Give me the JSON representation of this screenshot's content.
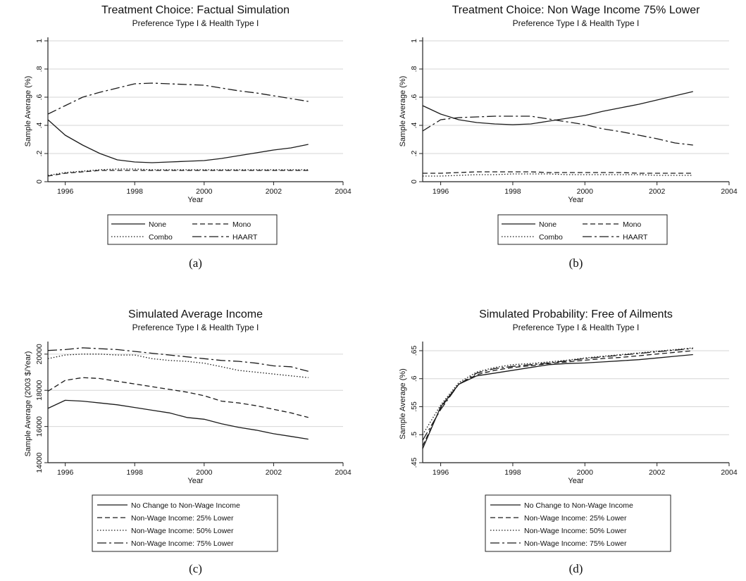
{
  "chart_data": [
    {
      "type": "line",
      "title": "Treatment Choice: Factual Simulation",
      "subtitle": "Preference Type I & Health Type I",
      "xlabel": "Year",
      "ylabel": "Sample Average (%)",
      "xlim": [
        1995.5,
        2004
      ],
      "ylim": [
        0,
        1
      ],
      "xticks": [
        "1996",
        "1998",
        "2000",
        "2002",
        "2004"
      ],
      "yticks": [
        "0",
        ".2",
        ".4",
        ".6",
        ".8",
        "1"
      ],
      "grid": true,
      "legend_columns": 2,
      "caption": "(a)",
      "x": [
        1995.5,
        1996,
        1996.5,
        1997,
        1997.5,
        1998,
        1998.5,
        1999,
        1999.5,
        2000,
        2000.5,
        2001,
        2001.5,
        2002,
        2002.5,
        2003
      ],
      "series": [
        {
          "name": "None",
          "style": "solid",
          "values": [
            0.44,
            0.33,
            0.26,
            0.2,
            0.155,
            0.14,
            0.135,
            0.14,
            0.145,
            0.15,
            0.165,
            0.185,
            0.205,
            0.225,
            0.24,
            0.265
          ]
        },
        {
          "name": "Mono",
          "style": "dash",
          "values": [
            0.04,
            0.06,
            0.07,
            0.08,
            0.08,
            0.08,
            0.08,
            0.08,
            0.08,
            0.08,
            0.08,
            0.08,
            0.08,
            0.08,
            0.08,
            0.08
          ]
        },
        {
          "name": "Combo",
          "style": "dot",
          "values": [
            0.045,
            0.065,
            0.075,
            0.085,
            0.09,
            0.09,
            0.085,
            0.085,
            0.085,
            0.085,
            0.085,
            0.085,
            0.085,
            0.085,
            0.085,
            0.085
          ]
        },
        {
          "name": "HAART",
          "style": "dashdot",
          "values": [
            0.48,
            0.54,
            0.6,
            0.635,
            0.665,
            0.695,
            0.7,
            0.695,
            0.69,
            0.685,
            0.665,
            0.645,
            0.63,
            0.61,
            0.59,
            0.57
          ]
        }
      ]
    },
    {
      "type": "line",
      "title": "Treatment Choice: Non Wage Income 75% Lower",
      "subtitle": "Preference Type I & Health Type I",
      "xlabel": "Year",
      "ylabel": "Sample Average (%)",
      "xlim": [
        1995.5,
        2004
      ],
      "ylim": [
        0,
        1
      ],
      "xticks": [
        "1996",
        "1998",
        "2000",
        "2002",
        "2004"
      ],
      "yticks": [
        "0",
        ".2",
        ".4",
        ".6",
        ".8",
        "1"
      ],
      "grid": true,
      "legend_columns": 2,
      "caption": "(b)",
      "x": [
        1995.5,
        1996,
        1996.5,
        1997,
        1997.5,
        1998,
        1998.5,
        1999,
        1999.5,
        2000,
        2000.5,
        2001,
        2001.5,
        2002,
        2002.5,
        2003
      ],
      "series": [
        {
          "name": "None",
          "style": "solid",
          "values": [
            0.54,
            0.48,
            0.44,
            0.42,
            0.41,
            0.405,
            0.41,
            0.43,
            0.45,
            0.47,
            0.5,
            0.525,
            0.55,
            0.58,
            0.61,
            0.64
          ]
        },
        {
          "name": "Mono",
          "style": "dash",
          "values": [
            0.06,
            0.06,
            0.065,
            0.07,
            0.07,
            0.07,
            0.07,
            0.065,
            0.065,
            0.065,
            0.065,
            0.065,
            0.06,
            0.06,
            0.06,
            0.06
          ]
        },
        {
          "name": "Combo",
          "style": "dot",
          "values": [
            0.04,
            0.04,
            0.045,
            0.05,
            0.05,
            0.055,
            0.055,
            0.055,
            0.05,
            0.05,
            0.05,
            0.05,
            0.05,
            0.045,
            0.045,
            0.045
          ]
        },
        {
          "name": "HAART",
          "style": "dashdot",
          "values": [
            0.36,
            0.44,
            0.455,
            0.46,
            0.465,
            0.465,
            0.465,
            0.445,
            0.425,
            0.405,
            0.375,
            0.355,
            0.33,
            0.305,
            0.275,
            0.26
          ]
        }
      ]
    },
    {
      "type": "line",
      "title": "Simulated Average Income",
      "subtitle": "Preference Type I & Health Type I",
      "xlabel": "Year",
      "ylabel": "Sample Average (2003 $/Year)",
      "xlim": [
        1995.5,
        2004
      ],
      "ylim": [
        14000,
        20500
      ],
      "ytick_values": [
        14000,
        16000,
        18000,
        20000
      ],
      "xticks": [
        "1996",
        "1998",
        "2000",
        "2002",
        "2004"
      ],
      "yticks": [
        "14000",
        "16000",
        "18000",
        "20000"
      ],
      "grid": true,
      "legend_columns": 1,
      "caption": "(c)",
      "x": [
        1995.5,
        1996,
        1996.5,
        1997,
        1997.5,
        1998,
        1998.5,
        1999,
        1999.5,
        2000,
        2000.5,
        2001,
        2001.5,
        2002,
        2002.5,
        2003
      ],
      "series": [
        {
          "name": "No Change to Non-Wage Income",
          "style": "solid",
          "values": [
            17000,
            17450,
            17400,
            17300,
            17200,
            17050,
            16900,
            16750,
            16500,
            16400,
            16150,
            15950,
            15800,
            15600,
            15450,
            15300
          ]
        },
        {
          "name": "Non-Wage Income: 25% Lower",
          "style": "dash",
          "values": [
            17950,
            18550,
            18700,
            18650,
            18500,
            18350,
            18200,
            18050,
            17900,
            17700,
            17400,
            17300,
            17150,
            16950,
            16750,
            16500
          ]
        },
        {
          "name": "Non-Wage Income: 50% Lower",
          "style": "dot",
          "values": [
            19750,
            19950,
            20000,
            20000,
            19950,
            19950,
            19750,
            19650,
            19600,
            19500,
            19300,
            19100,
            19000,
            18900,
            18800,
            18700
          ]
        },
        {
          "name": "Non-Wage Income: 75% Lower",
          "style": "dashdot",
          "values": [
            20200,
            20250,
            20350,
            20300,
            20250,
            20150,
            20050,
            19950,
            19850,
            19750,
            19650,
            19600,
            19500,
            19350,
            19300,
            19050
          ]
        }
      ]
    },
    {
      "type": "line",
      "title": "Simulated Probability: Free of Ailments",
      "subtitle": "Preference Type I & Health Type I",
      "xlabel": "Year",
      "ylabel": "Sample Average (%)",
      "xlim": [
        1995.5,
        2004
      ],
      "ylim": [
        0.45,
        0.66
      ],
      "ytick_values": [
        0.45,
        0.5,
        0.55,
        0.6,
        0.65
      ],
      "xticks": [
        "1996",
        "1998",
        "2000",
        "2002",
        "2004"
      ],
      "yticks": [
        ".45",
        ".5",
        ".55",
        ".6",
        ".65"
      ],
      "grid": true,
      "legend_columns": 1,
      "caption": "(d)",
      "x": [
        1995.5,
        1996,
        1996.5,
        1997,
        1997.5,
        1998,
        1998.5,
        1999,
        1999.5,
        2000,
        2000.5,
        2001,
        2001.5,
        2002,
        2002.5,
        2003
      ],
      "series": [
        {
          "name": "No Change to Non-Wage Income",
          "style": "solid",
          "values": [
            0.475,
            0.55,
            0.59,
            0.605,
            0.61,
            0.615,
            0.62,
            0.625,
            0.627,
            0.628,
            0.63,
            0.632,
            0.634,
            0.637,
            0.64,
            0.643
          ]
        },
        {
          "name": "Non-Wage Income: 25% Lower",
          "style": "dash",
          "values": [
            0.48,
            0.548,
            0.59,
            0.607,
            0.615,
            0.62,
            0.623,
            0.627,
            0.63,
            0.633,
            0.636,
            0.638,
            0.641,
            0.644,
            0.647,
            0.65
          ]
        },
        {
          "name": "Non-Wage Income: 50% Lower",
          "style": "dot",
          "values": [
            0.5,
            0.553,
            0.593,
            0.612,
            0.62,
            0.625,
            0.627,
            0.63,
            0.633,
            0.637,
            0.64,
            0.643,
            0.646,
            0.649,
            0.652,
            0.655
          ]
        },
        {
          "name": "Non-Wage Income: 75% Lower",
          "style": "dashdot",
          "values": [
            0.49,
            0.545,
            0.59,
            0.61,
            0.618,
            0.622,
            0.625,
            0.628,
            0.632,
            0.636,
            0.639,
            0.642,
            0.645,
            0.648,
            0.651,
            0.654
          ]
        }
      ]
    }
  ]
}
